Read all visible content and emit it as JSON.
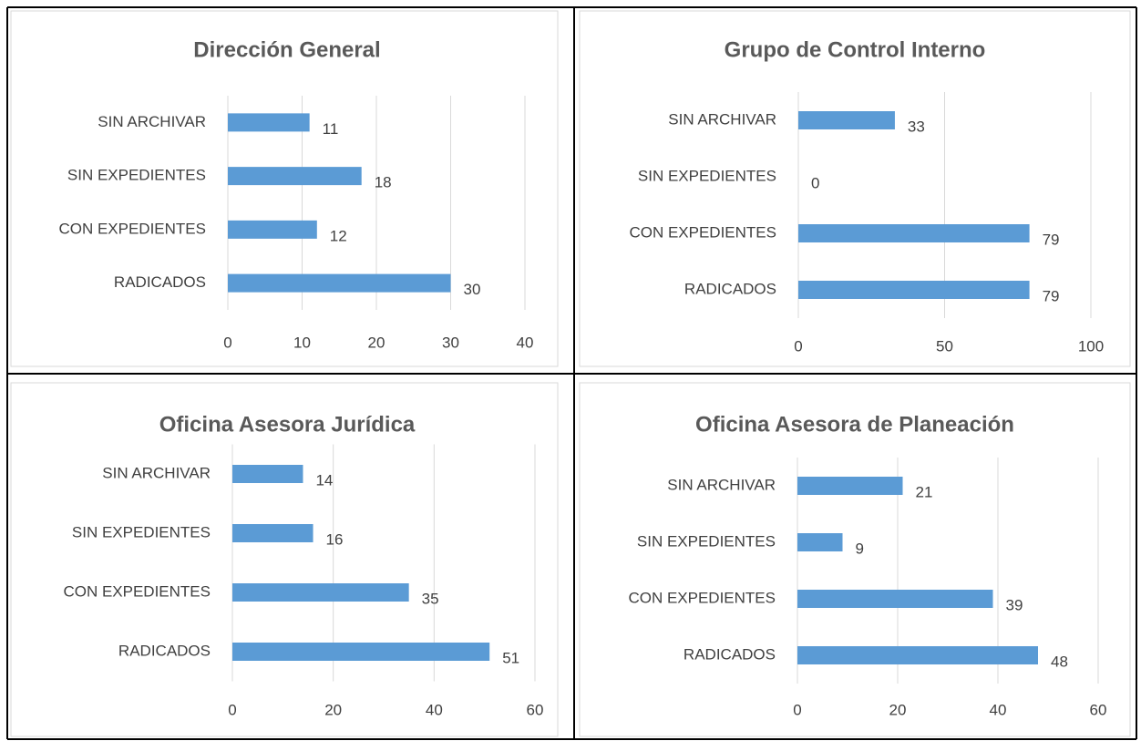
{
  "chart_data": [
    {
      "type": "bar",
      "title": "Dirección General",
      "categories": [
        "SIN ARCHIVAR",
        "SIN EXPEDIENTES",
        "CON EXPEDIENTES",
        "RADICADOS"
      ],
      "values": [
        11,
        18,
        12,
        30
      ],
      "color": "#5b9bd5",
      "xlim": [
        0,
        40
      ],
      "xticks": [
        0,
        10,
        20,
        30,
        40
      ],
      "grid": true
    },
    {
      "type": "bar",
      "title": "Grupo de Control Interno",
      "categories": [
        "SIN ARCHIVAR",
        "SIN EXPEDIENTES",
        "CON EXPEDIENTES",
        "RADICADOS"
      ],
      "values": [
        33,
        0,
        79,
        79
      ],
      "color": "#5b9bd5",
      "xlim": [
        0,
        100
      ],
      "xticks": [
        0,
        50,
        100
      ],
      "grid": true
    },
    {
      "type": "bar",
      "title": "Oficina Asesora Jurídica",
      "categories": [
        "SIN ARCHIVAR",
        "SIN EXPEDIENTES",
        "CON EXPEDIENTES",
        "RADICADOS"
      ],
      "values": [
        14,
        16,
        35,
        51
      ],
      "color": "#5b9bd5",
      "xlim": [
        0,
        60
      ],
      "xticks": [
        0,
        20,
        40,
        60
      ],
      "grid": true
    },
    {
      "type": "bar",
      "title": "Oficina Asesora de Planeación",
      "categories": [
        "SIN ARCHIVAR",
        "SIN EXPEDIENTES",
        "CON EXPEDIENTES",
        "RADICADOS"
      ],
      "values": [
        21,
        9,
        39,
        48
      ],
      "color": "#5b9bd5",
      "xlim": [
        0,
        60
      ],
      "xticks": [
        0,
        20,
        40,
        60
      ],
      "grid": true
    }
  ]
}
